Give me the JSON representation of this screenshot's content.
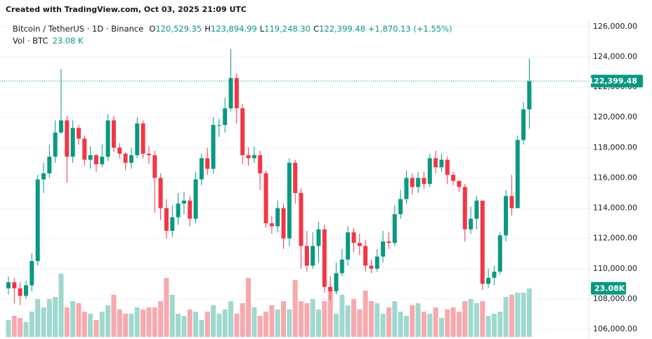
{
  "chart_data": {
    "type": "candlestick",
    "watermark": "Created with TradingView.com, Oct 03, 2025 21:09 UTC",
    "legend": {
      "symbol": "Bitcoin / TetherUS · 1D · Binance",
      "ohlc": [
        {
          "prefix": "O",
          "value": "120,529.35"
        },
        {
          "prefix": "H",
          "value": "123,894.99"
        },
        {
          "prefix": "L",
          "value": "119,248.30"
        },
        {
          "prefix": "C",
          "value": "122,399.48"
        }
      ],
      "change": "+1,870.13 (+1.55%)"
    },
    "volume_legend": {
      "label": "Vol · BTC",
      "value": "23.08 K"
    },
    "last_price": {
      "value": 122399.48,
      "label": "122,399.48"
    },
    "last_volume": {
      "value": 23.08,
      "label": "23.08K"
    },
    "up_color": "#089981",
    "down_color": "#f23645",
    "volume_up_color": "#9fd8cf",
    "volume_down_color": "#f7a9ad",
    "ylim": [
      105350,
      126460
    ],
    "volume_lim": [
      0,
      50
    ],
    "grid": true,
    "yticks": [
      {
        "value": 106000,
        "label": "106,000.00"
      },
      {
        "value": 108000,
        "label": "108,000.00"
      },
      {
        "value": 110000,
        "label": "110,000.00"
      },
      {
        "value": 112000,
        "label": "112,000.00"
      },
      {
        "value": 114000,
        "label": "114,000.00"
      },
      {
        "value": 116000,
        "label": "116,000.00"
      },
      {
        "value": 118000,
        "label": "118,000.00"
      },
      {
        "value": 120000,
        "label": "120,000.00"
      },
      {
        "value": 122000,
        "label": "122,000.00"
      },
      {
        "value": 124000,
        "label": "124,000.00"
      },
      {
        "value": 126000,
        "label": "126,000.00"
      }
    ],
    "open": [
      108700,
      109100,
      108700,
      108200,
      108900,
      110500,
      115900,
      116300,
      117400,
      119000,
      119800,
      117400,
      119300,
      118600,
      117200,
      117500,
      116900,
      117400,
      119800,
      118000,
      117600,
      117000,
      117500,
      119600,
      117600,
      117500,
      116000,
      114000,
      112500,
      113400,
      114300,
      114500,
      113300,
      115900,
      117300,
      116600,
      119500,
      119500,
      120600,
      122600,
      120600,
      117500,
      117300,
      117500,
      116300,
      113000,
      112800,
      114000,
      112000,
      117000,
      115000,
      111500,
      110200,
      111500,
      112600,
      108800,
      108500,
      109700,
      110600,
      112400,
      111700,
      111500,
      110200,
      110000,
      110800,
      111800,
      111700,
      113600,
      114600,
      116000,
      115400,
      116000,
      115600,
      117300,
      116700,
      117200,
      116200,
      115800,
      115400,
      112600,
      113300,
      114500,
      109000,
      109400,
      109800,
      112200,
      114800,
      114000,
      118500,
      120529.35
    ],
    "high": [
      109500,
      109400,
      109100,
      109200,
      111000,
      116200,
      117000,
      118200,
      119800,
      123200,
      120100,
      119800,
      119500,
      118800,
      118100,
      117600,
      118200,
      120200,
      120100,
      118300,
      117700,
      118000,
      120000,
      119800,
      118100,
      117800,
      116300,
      114600,
      114200,
      115000,
      115100,
      114800,
      116400,
      117600,
      118000,
      120000,
      119900,
      121300,
      124500,
      122900,
      120900,
      118000,
      118100,
      117800,
      116500,
      113500,
      114500,
      114300,
      117300,
      117200,
      115300,
      112500,
      112400,
      113100,
      112900,
      109500,
      110400,
      111300,
      112800,
      112700,
      112300,
      111900,
      110600,
      111300,
      112500,
      112400,
      114200,
      115200,
      116500,
      116300,
      116400,
      116400,
      117600,
      117800,
      117600,
      117400,
      116400,
      115800,
      115600,
      114100,
      114800,
      114500,
      110000,
      110200,
      112400,
      115200,
      116200,
      118800,
      121000,
      123894.99
    ],
    "low": [
      108300,
      107700,
      107600,
      108000,
      108500,
      110200,
      115000,
      116000,
      117000,
      118900,
      115700,
      117000,
      118200,
      116800,
      116600,
      116400,
      116700,
      117100,
      117700,
      117300,
      116500,
      116600,
      117300,
      117300,
      116900,
      113700,
      113200,
      112000,
      112100,
      112900,
      113600,
      112800,
      113000,
      115500,
      116200,
      116300,
      118700,
      119000,
      120400,
      119600,
      116900,
      116800,
      117000,
      115200,
      112700,
      112300,
      112400,
      111300,
      111500,
      114300,
      110000,
      109800,
      110000,
      110400,
      108400,
      107900,
      108300,
      109500,
      110200,
      111100,
      110900,
      109800,
      109700,
      109800,
      110400,
      111300,
      111500,
      113300,
      114300,
      114900,
      115000,
      115300,
      115400,
      116300,
      116400,
      115600,
      115500,
      115100,
      111800,
      112300,
      112600,
      108600,
      108700,
      108900,
      109600,
      111800,
      113500,
      114000,
      118200,
      119248.3
    ],
    "close": [
      109100,
      108700,
      108200,
      108900,
      110500,
      115900,
      116300,
      117400,
      119000,
      119800,
      117400,
      119300,
      118600,
      117200,
      117500,
      116900,
      117400,
      119800,
      118000,
      117600,
      117000,
      117500,
      119600,
      117600,
      117500,
      116000,
      114000,
      112500,
      113400,
      114300,
      114500,
      113300,
      115900,
      117300,
      116600,
      119500,
      119500,
      120600,
      122600,
      120600,
      117500,
      117300,
      117500,
      116300,
      113000,
      112800,
      114000,
      112000,
      117000,
      115000,
      111500,
      110200,
      111500,
      112600,
      108800,
      108500,
      109700,
      110600,
      112400,
      111700,
      111500,
      110200,
      110000,
      110800,
      111800,
      111700,
      113600,
      114600,
      116000,
      115400,
      116000,
      115600,
      117300,
      116700,
      117200,
      116200,
      115800,
      115400,
      112600,
      113300,
      114500,
      109000,
      109400,
      109800,
      112200,
      114800,
      114000,
      118500,
      120529.35,
      122399.48
    ],
    "volume": [
      8,
      10,
      9,
      7,
      12,
      18,
      14,
      18,
      19,
      30,
      14,
      17,
      16,
      12,
      11,
      8,
      12,
      15,
      20,
      13,
      11,
      11,
      14,
      13,
      14,
      14,
      17,
      28,
      20,
      11,
      10,
      13,
      12,
      8,
      12,
      15,
      11,
      13,
      17,
      11,
      16,
      28,
      14,
      10,
      12,
      15,
      13,
      17,
      13,
      27,
      17,
      16,
      18,
      13,
      17,
      22,
      11,
      20,
      15,
      18,
      13,
      22,
      17,
      16,
      11,
      14,
      17,
      12,
      10,
      15,
      16,
      12,
      11,
      14,
      9,
      13,
      14,
      12,
      17,
      18,
      16,
      17,
      10,
      11,
      12,
      19,
      20,
      21,
      21,
      23.08
    ]
  }
}
